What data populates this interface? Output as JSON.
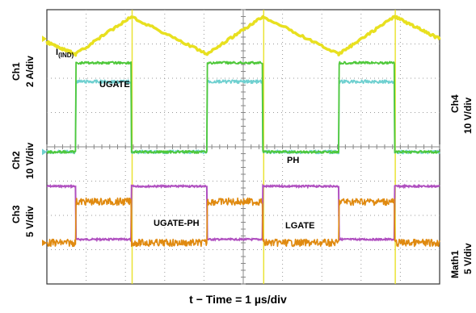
{
  "chart_data": {
    "type": "line",
    "title": "",
    "xlabel": "t − Time = 1 µs/div",
    "x_divisions": 10,
    "y_divisions": 8,
    "left_axis_labels": [
      {
        "channel": "Ch1",
        "scale": "2 A/div"
      },
      {
        "channel": "Ch2",
        "scale": "10 V/div"
      },
      {
        "channel": "Ch3",
        "scale": "5 V/div"
      }
    ],
    "right_axis_labels": [
      {
        "channel": "Ch4",
        "scale": "10 V/div"
      },
      {
        "channel": "Math1",
        "scale": "5 V/div"
      }
    ],
    "trace_labels": {
      "inductor_current": "I",
      "inductor_current_sub": "(IND)",
      "ugate": "UGATE",
      "ph": "PH",
      "ugate_ph": "UGATE-PH",
      "lgate": "LGATE"
    },
    "colors": {
      "ch1_inductor_current": "#e8e020",
      "ugate": "#4ec83a",
      "ph": "#6fd0d0",
      "ugate_ph": "#e08a10",
      "lgate": "#b050c0",
      "grid": "#9a9a9a",
      "background": "#ffffff"
    },
    "switching_period_div": 3.35,
    "on_edges_div": [
      0.73,
      4.08,
      7.43
    ],
    "off_edges_div": [
      2.15,
      5.5,
      8.85
    ],
    "series": [
      {
        "name": "I(IND)",
        "unit_div": "2 A/div",
        "min_div": -1.3,
        "max_div": -0.2
      },
      {
        "name": "UGATE",
        "high_div": -1.55,
        "low_div": -4.15
      },
      {
        "name": "PH",
        "high_div": -2.1,
        "low_div": -4.15
      },
      {
        "name": "UGATE-PH",
        "high_div": -5.6,
        "low_div": -6.8
      },
      {
        "name": "LGATE",
        "high_div": -5.15,
        "low_div": -6.7
      }
    ]
  }
}
